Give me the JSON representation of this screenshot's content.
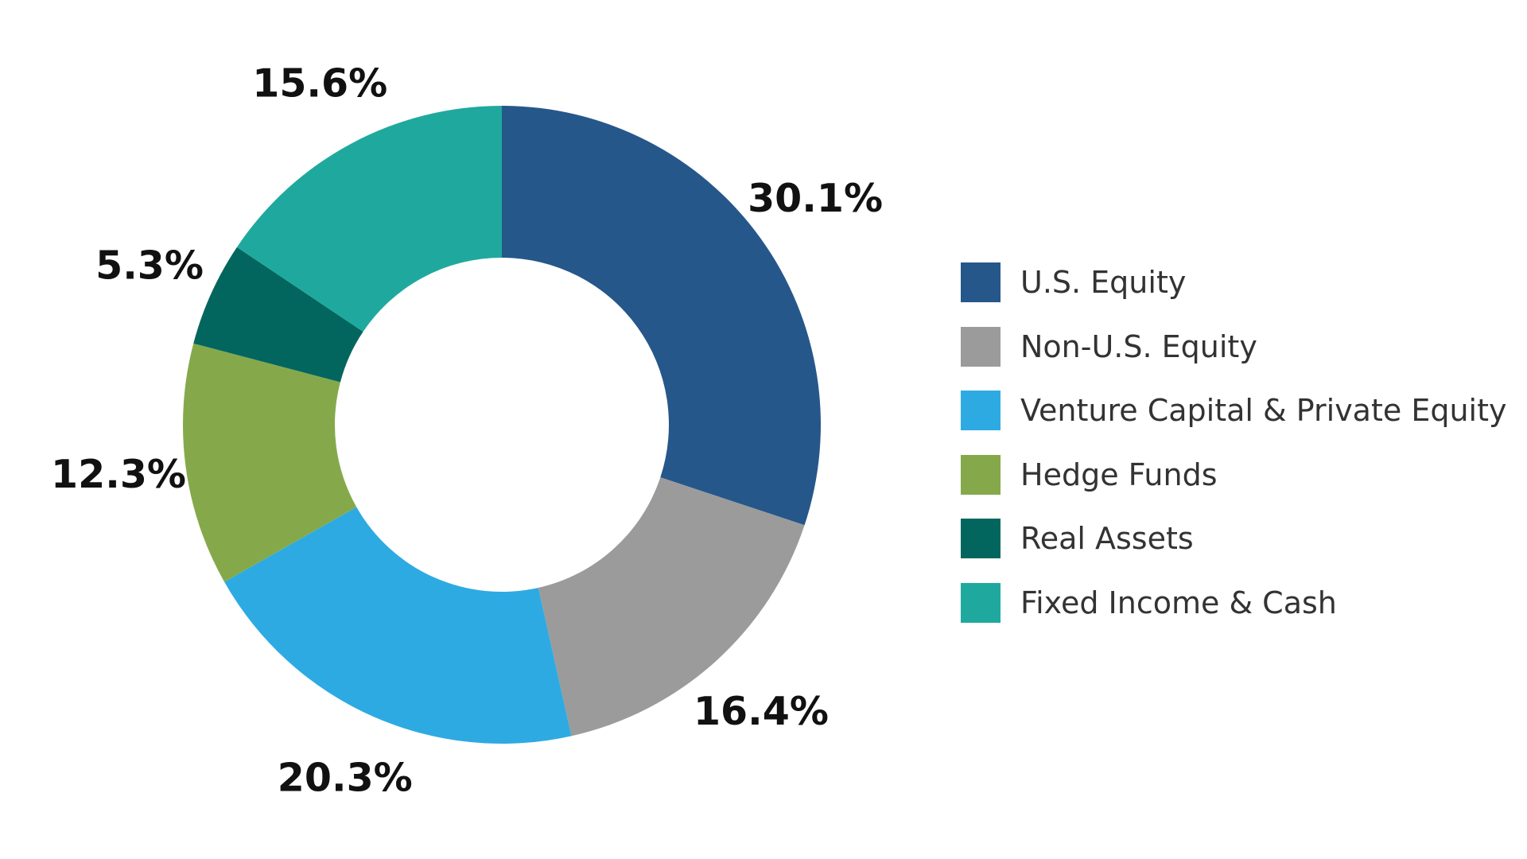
{
  "chart_data": {
    "type": "pie",
    "variant": "donut",
    "title": "",
    "categories": [
      "U.S. Equity",
      "Non-U.S. Equity",
      "Venture Capital & Private Equity",
      "Hedge Funds",
      "Real Assets",
      "Fixed Income & Cash"
    ],
    "values": [
      30.1,
      16.4,
      20.3,
      12.3,
      5.3,
      15.6
    ],
    "labels": [
      "30.1%",
      "16.4%",
      "20.3%",
      "12.3%",
      "5.3%",
      "15.6%"
    ],
    "colors": [
      "#26578a",
      "#9b9b9b",
      "#2eaae2",
      "#85a94a",
      "#03665e",
      "#1fa99e"
    ],
    "legend_position": "right",
    "start_angle": "top",
    "direction": "clockwise"
  }
}
